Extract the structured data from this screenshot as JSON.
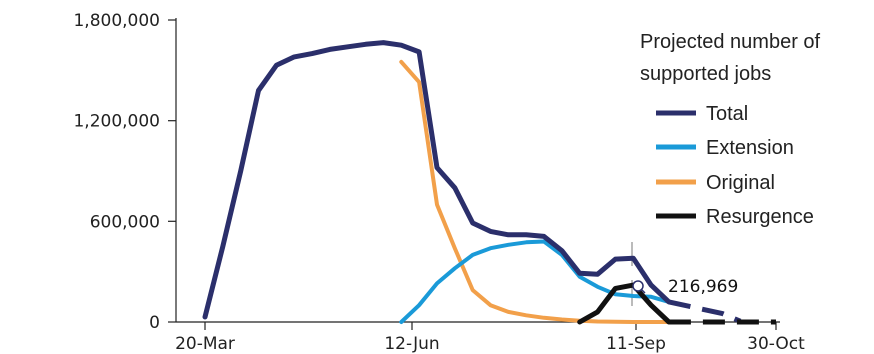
{
  "chart_data": {
    "type": "line",
    "title": "",
    "xlabel": "",
    "ylabel": "",
    "x_tick_labels": [
      "20-Mar",
      "12-Jun",
      "11-Sep",
      "30-Oct"
    ],
    "y_tick_labels": [
      "0",
      "600,000",
      "1,200,000",
      "1,800,000"
    ],
    "ylim": [
      0,
      1800000
    ],
    "legend": {
      "title_lines": [
        "Projected number of",
        "supported jobs"
      ],
      "placement": "top-right"
    },
    "annotation": {
      "text": "216,969",
      "date": "11-Sep"
    },
    "colors": {
      "Total": "#2b2f6b",
      "Extension": "#1a9ad8",
      "Original": "#f2a04a",
      "Resurgence": "#111111"
    },
    "series": [
      {
        "name": "Total",
        "points": [
          [
            "20-Mar",
            30000
          ],
          [
            "27-Mar",
            450000
          ],
          [
            "3-Apr",
            900000
          ],
          [
            "10-Apr",
            1380000
          ],
          [
            "17-Apr",
            1530000
          ],
          [
            "24-Apr",
            1580000
          ],
          [
            "1-May",
            1600000
          ],
          [
            "8-May",
            1625000
          ],
          [
            "15-May",
            1640000
          ],
          [
            "22-May",
            1655000
          ],
          [
            "29-May",
            1665000
          ],
          [
            "5-Jun",
            1650000
          ],
          [
            "12-Jun",
            1610000
          ],
          [
            "19-Jun",
            920000
          ],
          [
            "26-Jun",
            800000
          ],
          [
            "3-Jul",
            590000
          ],
          [
            "10-Jul",
            540000
          ],
          [
            "17-Jul",
            520000
          ],
          [
            "24-Jul",
            520000
          ],
          [
            "31-Jul",
            510000
          ],
          [
            "7-Aug",
            425000
          ],
          [
            "14-Aug",
            290000
          ],
          [
            "21-Aug",
            285000
          ],
          [
            "28-Aug",
            375000
          ],
          [
            "4-Sep",
            380000
          ],
          [
            "11-Sep",
            220000
          ],
          [
            "18-Sep",
            120000
          ]
        ]
      },
      {
        "name": "Total (projected)",
        "points": [
          [
            "18-Sep",
            120000
          ],
          [
            "9-Oct",
            50000
          ],
          [
            "16-Oct",
            5000
          ]
        ]
      },
      {
        "name": "Extension",
        "points": [
          [
            "5-Jun",
            0
          ],
          [
            "12-Jun",
            100000
          ],
          [
            "19-Jun",
            230000
          ],
          [
            "26-Jun",
            320000
          ],
          [
            "3-Jul",
            400000
          ],
          [
            "10-Jul",
            440000
          ],
          [
            "17-Jul",
            460000
          ],
          [
            "24-Jul",
            475000
          ],
          [
            "31-Jul",
            480000
          ],
          [
            "7-Aug",
            400000
          ],
          [
            "14-Aug",
            270000
          ],
          [
            "21-Aug",
            210000
          ],
          [
            "28-Aug",
            165000
          ],
          [
            "4-Sep",
            155000
          ],
          [
            "11-Sep",
            150000
          ],
          [
            "18-Sep",
            120000
          ]
        ]
      },
      {
        "name": "Original",
        "points": [
          [
            "5-Jun",
            1550000
          ],
          [
            "12-Jun",
            1430000
          ],
          [
            "19-Jun",
            700000
          ],
          [
            "26-Jun",
            440000
          ],
          [
            "3-Jul",
            190000
          ],
          [
            "10-Jul",
            100000
          ],
          [
            "17-Jul",
            60000
          ],
          [
            "24-Jul",
            40000
          ],
          [
            "31-Jul",
            25000
          ],
          [
            "7-Aug",
            15000
          ],
          [
            "14-Aug",
            8000
          ],
          [
            "21-Aug",
            3000
          ],
          [
            "28-Aug",
            1000
          ],
          [
            "4-Sep",
            0
          ],
          [
            "11-Sep",
            0
          ],
          [
            "18-Sep",
            0
          ]
        ]
      },
      {
        "name": "Resurgence",
        "points": [
          [
            "14-Aug",
            0
          ],
          [
            "21-Aug",
            60000
          ],
          [
            "28-Aug",
            200000
          ],
          [
            "4-Sep",
            220000
          ],
          [
            "11-Sep",
            100000
          ],
          [
            "18-Sep",
            0
          ]
        ]
      },
      {
        "name": "Resurgence (projected)",
        "points": [
          [
            "18-Sep",
            0
          ],
          [
            "30-Oct",
            0
          ]
        ]
      }
    ]
  }
}
